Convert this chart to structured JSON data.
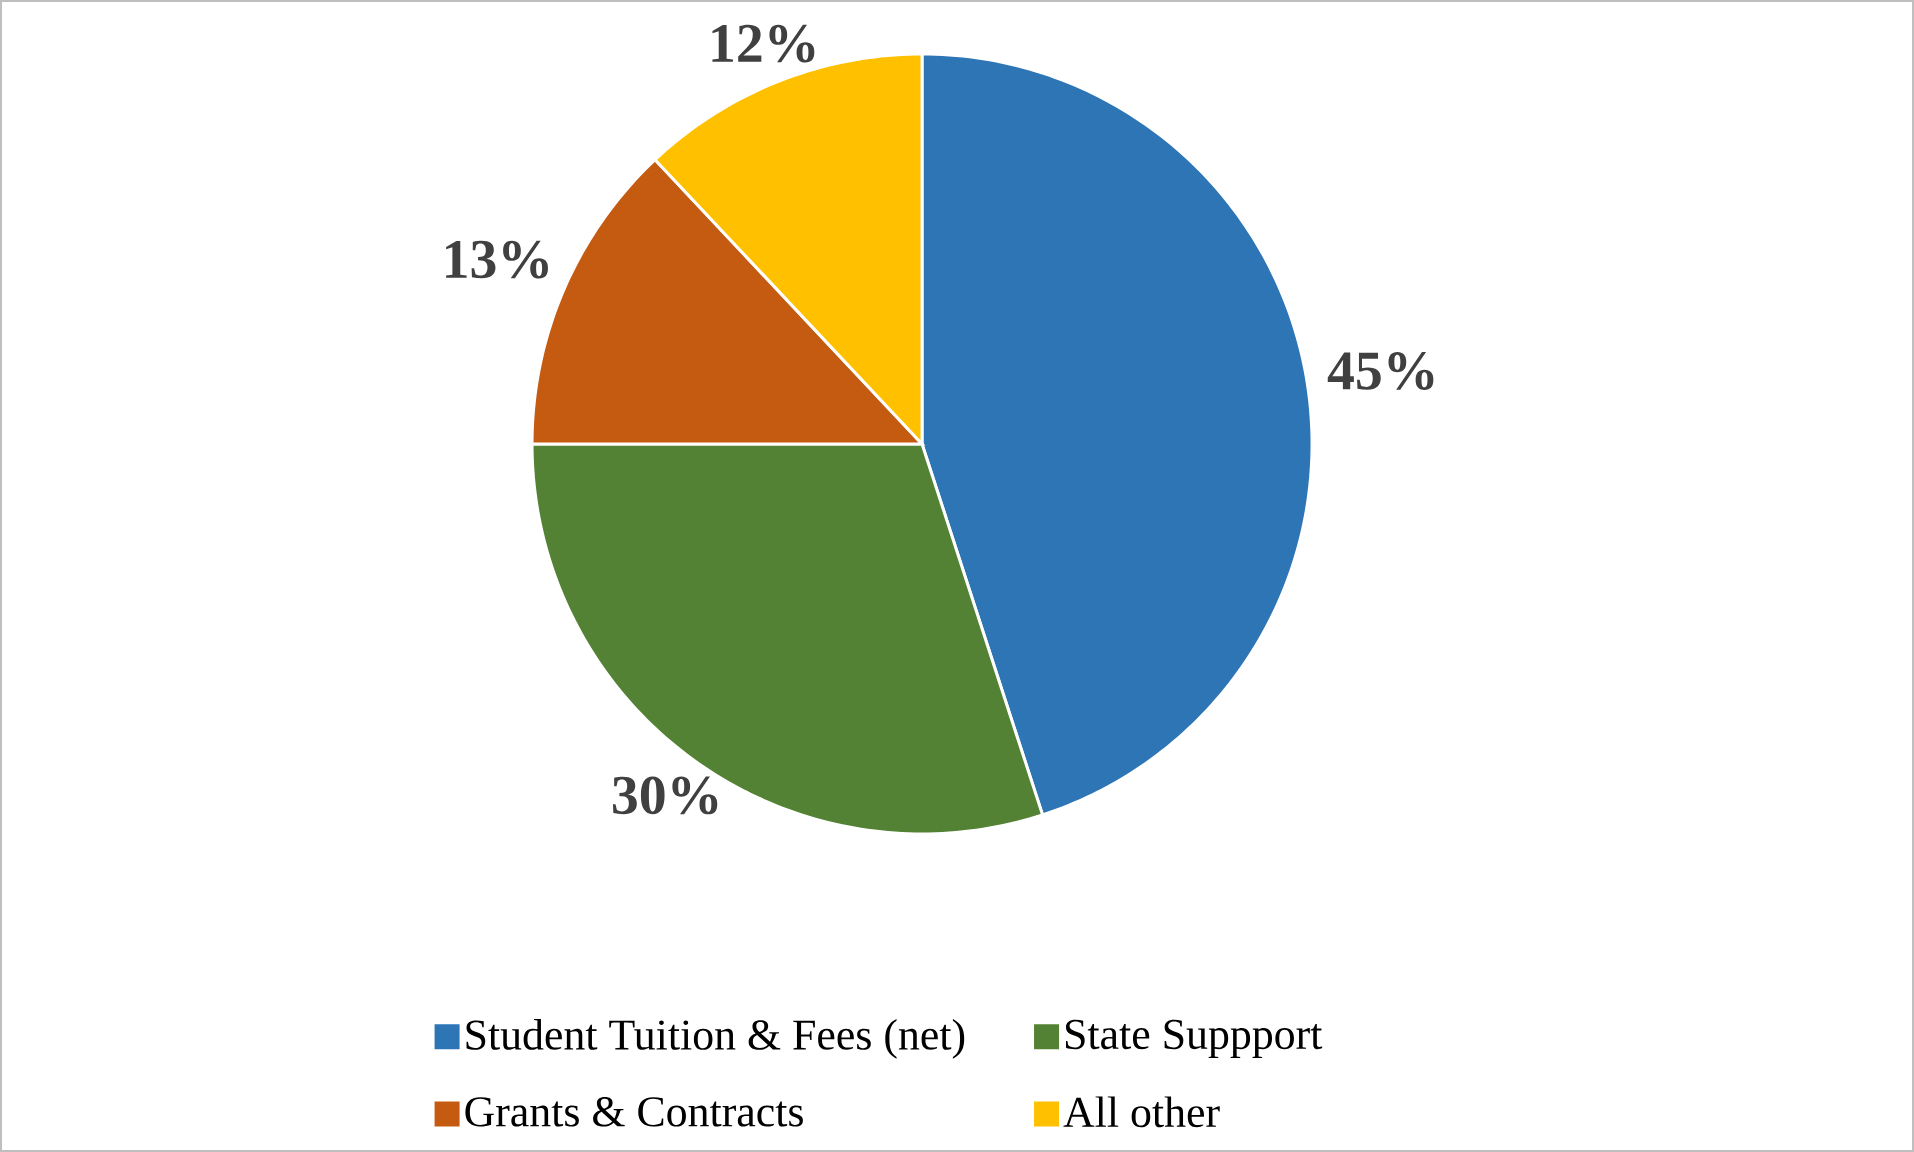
{
  "chart_data": {
    "type": "pie",
    "categories": [
      "Student Tuition & Fees (net)",
      "State Suppport",
      "Grants & Contracts",
      "All other"
    ],
    "values": [
      45,
      30,
      13,
      12
    ],
    "colors": [
      "#2e75b6",
      "#548235",
      "#c55a11",
      "#ffc000"
    ],
    "value_labels": [
      "45%",
      "30%",
      "13%",
      "12%"
    ],
    "legend": "bottom"
  }
}
